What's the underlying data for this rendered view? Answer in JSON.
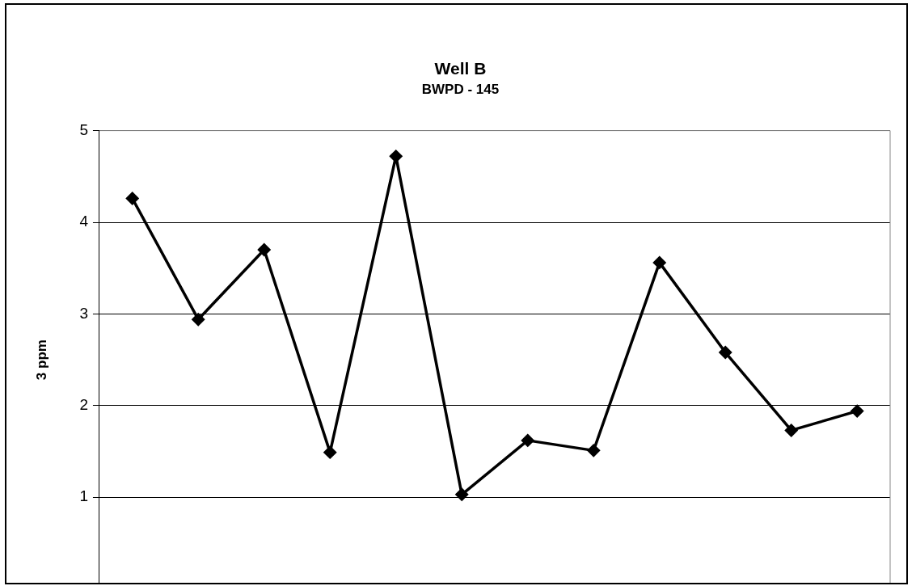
{
  "chart_data": {
    "type": "line",
    "title": "Well B",
    "subtitle": "BWPD - 145",
    "ylabel": "3 ppm",
    "categories": [
      null,
      null,
      null,
      null,
      null,
      null,
      null,
      null,
      null,
      null,
      null,
      null
    ],
    "series": [
      {
        "color": "#000000",
        "values": [
          4.26,
          2.94,
          3.7,
          1.49,
          4.72,
          1.03,
          1.62,
          1.51,
          3.56,
          2.58,
          1.73,
          1.94
        ]
      }
    ],
    "ylim": [
      0,
      5
    ],
    "yticks": [
      1,
      2,
      3,
      4,
      5
    ],
    "grid": "y",
    "legend": false,
    "tick_labels": "y",
    "marker": "diamond",
    "line_style": "solid"
  }
}
